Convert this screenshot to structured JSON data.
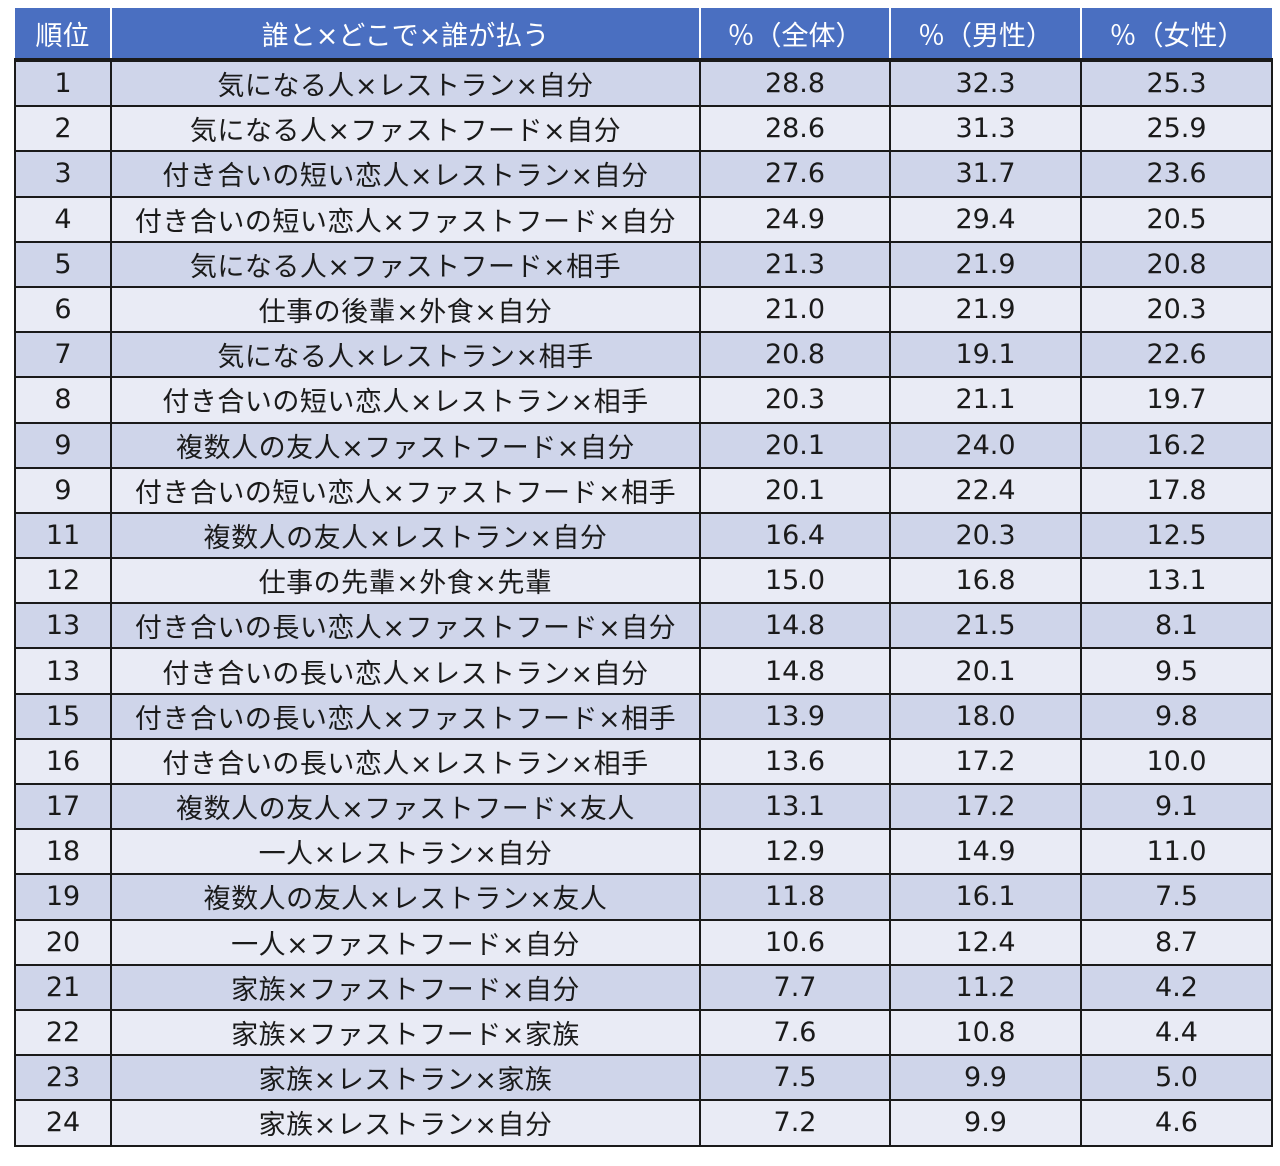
{
  "table": {
    "headers": [
      "順位",
      "誰と×どこで×誰が払う",
      "％（全体）",
      "％（男性）",
      "％（女性）"
    ],
    "rows": [
      {
        "rank": "1",
        "combo": "気になる人×レストラン×自分",
        "all": "28.8",
        "male": "32.3",
        "female": "25.3"
      },
      {
        "rank": "2",
        "combo": "気になる人×ファストフード×自分",
        "all": "28.6",
        "male": "31.3",
        "female": "25.9"
      },
      {
        "rank": "3",
        "combo": "付き合いの短い恋人×レストラン×自分",
        "all": "27.6",
        "male": "31.7",
        "female": "23.6"
      },
      {
        "rank": "4",
        "combo": "付き合いの短い恋人×ファストフード×自分",
        "all": "24.9",
        "male": "29.4",
        "female": "20.5"
      },
      {
        "rank": "5",
        "combo": "気になる人×ファストフード×相手",
        "all": "21.3",
        "male": "21.9",
        "female": "20.8"
      },
      {
        "rank": "6",
        "combo": "仕事の後輩×外食×自分",
        "all": "21.0",
        "male": "21.9",
        "female": "20.3"
      },
      {
        "rank": "7",
        "combo": "気になる人×レストラン×相手",
        "all": "20.8",
        "male": "19.1",
        "female": "22.6"
      },
      {
        "rank": "8",
        "combo": "付き合いの短い恋人×レストラン×相手",
        "all": "20.3",
        "male": "21.1",
        "female": "19.7"
      },
      {
        "rank": "9",
        "combo": "複数人の友人×ファストフード×自分",
        "all": "20.1",
        "male": "24.0",
        "female": "16.2"
      },
      {
        "rank": "9",
        "combo": "付き合いの短い恋人×ファストフード×相手",
        "all": "20.1",
        "male": "22.4",
        "female": "17.8"
      },
      {
        "rank": "11",
        "combo": "複数人の友人×レストラン×自分",
        "all": "16.4",
        "male": "20.3",
        "female": "12.5"
      },
      {
        "rank": "12",
        "combo": "仕事の先輩×外食×先輩",
        "all": "15.0",
        "male": "16.8",
        "female": "13.1"
      },
      {
        "rank": "13",
        "combo": "付き合いの長い恋人×ファストフード×自分",
        "all": "14.8",
        "male": "21.5",
        "female": "8.1"
      },
      {
        "rank": "13",
        "combo": "付き合いの長い恋人×レストラン×自分",
        "all": "14.8",
        "male": "20.1",
        "female": "9.5"
      },
      {
        "rank": "15",
        "combo": "付き合いの長い恋人×ファストフード×相手",
        "all": "13.9",
        "male": "18.0",
        "female": "9.8"
      },
      {
        "rank": "16",
        "combo": "付き合いの長い恋人×レストラン×相手",
        "all": "13.6",
        "male": "17.2",
        "female": "10.0"
      },
      {
        "rank": "17",
        "combo": "複数人の友人×ファストフード×友人",
        "all": "13.1",
        "male": "17.2",
        "female": "9.1"
      },
      {
        "rank": "18",
        "combo": "一人×レストラン×自分",
        "all": "12.9",
        "male": "14.9",
        "female": "11.0"
      },
      {
        "rank": "19",
        "combo": "複数人の友人×レストラン×友人",
        "all": "11.8",
        "male": "16.1",
        "female": "7.5"
      },
      {
        "rank": "20",
        "combo": "一人×ファストフード×自分",
        "all": "10.6",
        "male": "12.4",
        "female": "8.7"
      },
      {
        "rank": "21",
        "combo": "家族×ファストフード×自分",
        "all": "7.7",
        "male": "11.2",
        "female": "4.2"
      },
      {
        "rank": "22",
        "combo": "家族×ファストフード×家族",
        "all": "7.6",
        "male": "10.8",
        "female": "4.4"
      },
      {
        "rank": "23",
        "combo": "家族×レストラン×家族",
        "all": "7.5",
        "male": "9.9",
        "female": "5.0"
      },
      {
        "rank": "24",
        "combo": "家族×レストラン×自分",
        "all": "7.2",
        "male": "9.9",
        "female": "4.6"
      }
    ]
  },
  "colors": {
    "header_bg": "#4a6fc1",
    "row_odd_bg": "#cfd5ea",
    "row_even_bg": "#e9ebf5"
  }
}
